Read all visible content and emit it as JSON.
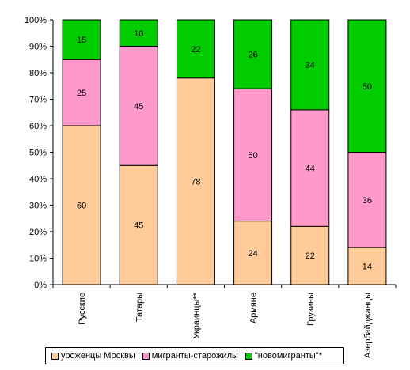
{
  "chart_data": {
    "type": "bar",
    "stacked": true,
    "percent": true,
    "categories": [
      "Русские",
      "Татары",
      "Украинцы**",
      "Армяне",
      "Грузины",
      "Азербайджанцы"
    ],
    "series": [
      {
        "name": "уроженцы Москвы",
        "color": "#ffcc99",
        "values": [
          60,
          45,
          78,
          24,
          22,
          14
        ]
      },
      {
        "name": "мигранты-старожилы",
        "color": "#ff99cc",
        "values": [
          25,
          45,
          0,
          50,
          44,
          36
        ]
      },
      {
        "name": "\"новомигранты\"*",
        "color": "#00cc00",
        "values": [
          15,
          10,
          22,
          26,
          34,
          50
        ]
      }
    ],
    "data_labels": [
      [
        "60",
        "45",
        "78",
        "24",
        "22",
        "14"
      ],
      [
        "25",
        "45",
        "",
        "50",
        "44",
        "36"
      ],
      [
        "15",
        "10",
        "22",
        "26",
        "34",
        "50"
      ]
    ],
    "y_ticks": [
      "0%",
      "10%",
      "20%",
      "30%",
      "40%",
      "50%",
      "60%",
      "70%",
      "80%",
      "90%",
      "100%"
    ],
    "ylim": [
      0,
      100
    ],
    "grid": false,
    "legend_position": "bottom"
  }
}
